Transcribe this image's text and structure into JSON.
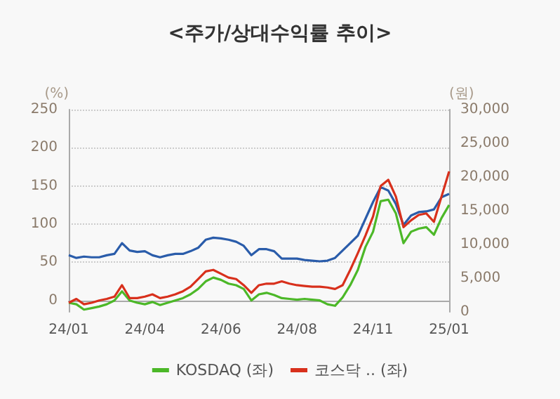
{
  "chart_data": {
    "type": "line",
    "title": "<주가/상대수익률 추이>",
    "ylabel": "(%)",
    "y2label": "(원)",
    "categories": [
      "24/01",
      null,
      null,
      null,
      null,
      null,
      null,
      null,
      null,
      null,
      "24/04",
      null,
      null,
      null,
      null,
      null,
      null,
      null,
      null,
      null,
      "24/06",
      null,
      null,
      null,
      null,
      null,
      null,
      null,
      null,
      null,
      "24/08",
      null,
      null,
      null,
      null,
      null,
      null,
      null,
      null,
      null,
      "24/11",
      null,
      null,
      null,
      null,
      null,
      null,
      null,
      null,
      null,
      "25/01"
    ],
    "series": [
      {
        "color": "#2a5caa",
        "axis": "y2",
        "values": [
          8400,
          8000,
          8200,
          8100,
          8100,
          8400,
          8600,
          10200,
          9100,
          8900,
          9000,
          8400,
          8100,
          8400,
          8600,
          8600,
          9000,
          9500,
          10700,
          11000,
          10900,
          10700,
          10400,
          9800,
          8400,
          9300,
          9300,
          9000,
          7900,
          7900,
          7900,
          7700,
          7600,
          7500,
          7600,
          8000,
          9100,
          10200,
          11300,
          13800,
          16300,
          18500,
          18000,
          16000,
          12900,
          14300,
          14800,
          14900,
          15200,
          17000,
          17500
        ]
      },
      {
        "name": "KOSDAQ (좌)",
        "color": "#4cb828",
        "values": [
          -3,
          -5,
          -12,
          -10,
          -8,
          -5,
          0,
          12,
          0,
          -3,
          -5,
          -2,
          -6,
          -3,
          0,
          3,
          8,
          15,
          25,
          30,
          27,
          22,
          20,
          15,
          0,
          8,
          10,
          7,
          3,
          2,
          1,
          2,
          1,
          0,
          -5,
          -7,
          4,
          20,
          40,
          70,
          90,
          130,
          132,
          114,
          75,
          90,
          94,
          96,
          86,
          108,
          125
        ]
      },
      {
        "name": "코스닥 .. (좌)",
        "color": "#d8301c",
        "values": [
          -3,
          2,
          -5,
          -3,
          0,
          2,
          5,
          20,
          3,
          3,
          5,
          8,
          3,
          5,
          8,
          12,
          18,
          28,
          38,
          40,
          35,
          30,
          28,
          20,
          10,
          20,
          22,
          22,
          25,
          22,
          20,
          19,
          18,
          18,
          17,
          15,
          20,
          40,
          62,
          85,
          110,
          150,
          158,
          136,
          96,
          105,
          112,
          114,
          103,
          136,
          169
        ]
      }
    ],
    "ylim": [
      -15,
      250
    ],
    "yticks": [
      0,
      50,
      100,
      150,
      200,
      250
    ],
    "y2lim": [
      0,
      30000
    ],
    "y2ticks": [
      0,
      {
        "value": 5000,
        "label": "5,000"
      },
      {
        "value": 10000,
        "label": "10,000"
      },
      {
        "value": 15000,
        "label": "15,000"
      },
      {
        "value": 20000,
        "label": "20,000"
      },
      {
        "value": 25000,
        "label": "25,000"
      },
      {
        "value": 30000,
        "label": "30,000"
      }
    ],
    "grid": "y",
    "legend": "bottom",
    "marker": "none",
    "line_style": "solid"
  }
}
